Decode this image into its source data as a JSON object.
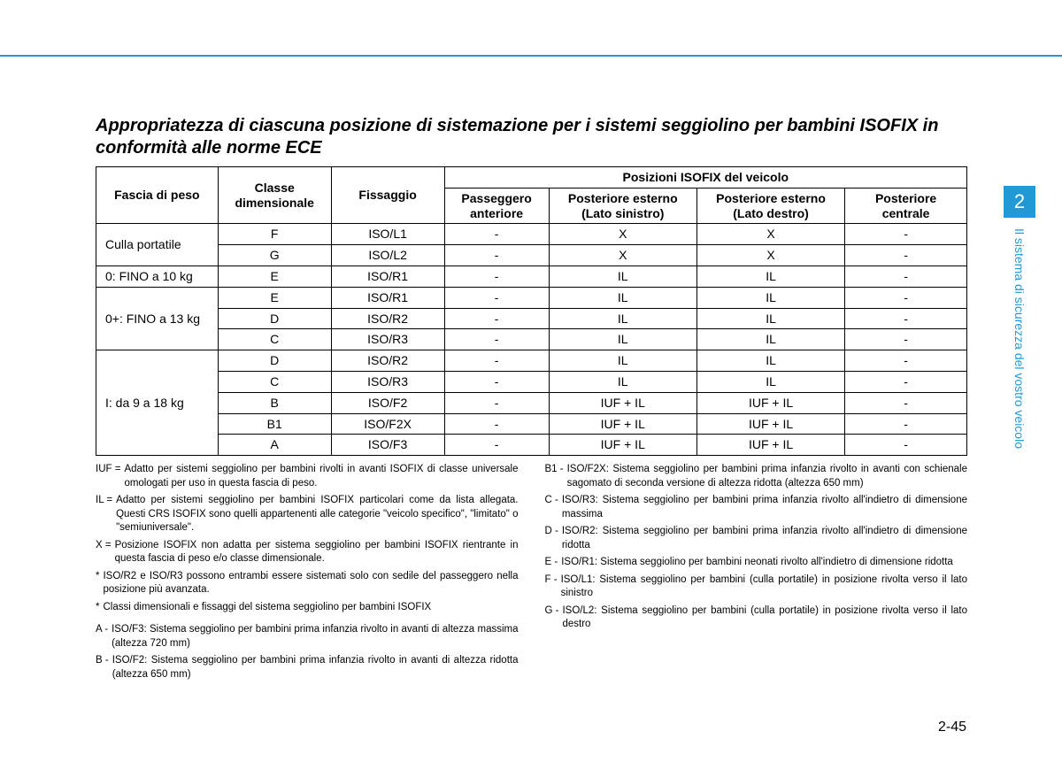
{
  "colors": {
    "accent": "#2199d5",
    "text": "#000000",
    "bg": "#ffffff",
    "border": "#000000"
  },
  "typography": {
    "base_font": "Arial",
    "title_size_pt": 15,
    "table_size_pt": 10.5,
    "footnote_size_pt": 8.5
  },
  "side": {
    "chapter": "2",
    "label": "Il sistema di sicurezza del vostro veicolo"
  },
  "page_number": "2-45",
  "title": "Appropriatezza di ciascuna posizione di sistemazione per i sistemi seggiolino per bambini ISOFIX in conformità alle norme ECE",
  "table": {
    "type": "table",
    "border_color": "#000000",
    "col_widths_pct": [
      14,
      13,
      13,
      12,
      17,
      17,
      14
    ],
    "headers": {
      "weight": "Fascia di peso",
      "class": "Classe dimensionale",
      "fixture": "Fissaggio",
      "group": "Posizioni ISOFIX del veicolo",
      "pos1": "Passeggero anteriore",
      "pos2": "Posteriore esterno (Lato sinistro)",
      "pos3": "Posteriore esterno (Lato destro)",
      "pos4": "Posteriore centrale"
    },
    "rows": [
      {
        "weight": "Culla portatile",
        "span": 2,
        "cls": "F",
        "fix": "ISO/L1",
        "p1": "-",
        "p2": "X",
        "p3": "X",
        "p4": "-"
      },
      {
        "cls": "G",
        "fix": "ISO/L2",
        "p1": "-",
        "p2": "X",
        "p3": "X",
        "p4": "-"
      },
      {
        "weight": "0: FINO a 10 kg",
        "span": 1,
        "cls": "E",
        "fix": "ISO/R1",
        "p1": "-",
        "p2": "IL",
        "p3": "IL",
        "p4": "-"
      },
      {
        "weight": "0+: FINO a 13 kg",
        "span": 3,
        "cls": "E",
        "fix": "ISO/R1",
        "p1": "-",
        "p2": "IL",
        "p3": "IL",
        "p4": "-"
      },
      {
        "cls": "D",
        "fix": "ISO/R2",
        "p1": "-",
        "p2": "IL",
        "p3": "IL",
        "p4": "-"
      },
      {
        "cls": "C",
        "fix": "ISO/R3",
        "p1": "-",
        "p2": "IL",
        "p3": "IL",
        "p4": "-"
      },
      {
        "weight": "I: da 9 a 18 kg",
        "span": 5,
        "cls": "D",
        "fix": "ISO/R2",
        "p1": "-",
        "p2": "IL",
        "p3": "IL",
        "p4": "-"
      },
      {
        "cls": "C",
        "fix": "ISO/R3",
        "p1": "-",
        "p2": "IL",
        "p3": "IL",
        "p4": "-"
      },
      {
        "cls": "B",
        "fix": "ISO/F2",
        "p1": "-",
        "p2": "IUF + IL",
        "p3": "IUF + IL",
        "p4": "-"
      },
      {
        "cls": "B1",
        "fix": "ISO/F2X",
        "p1": "-",
        "p2": "IUF + IL",
        "p3": "IUF + IL",
        "p4": "-"
      },
      {
        "cls": "A",
        "fix": "ISO/F3",
        "p1": "-",
        "p2": "IUF + IL",
        "p3": "IUF + IL",
        "p4": "-"
      }
    ]
  },
  "footnotes": {
    "left": [
      {
        "lbl": "IUF =",
        "txt": "Adatto per sistemi seggiolino per bambini rivolti in avanti ISOFIX di classe universale omologati per uso in questa fascia di peso."
      },
      {
        "lbl": "IL =",
        "txt": "Adatto per sistemi seggiolino per bambini ISOFIX particolari come da lista allegata. Questi CRS ISOFIX sono quelli appartenenti alle categorie \"veicolo specifico\", \"limitato\" o \"semiuniversale\"."
      },
      {
        "lbl": "X =",
        "txt": "Posizione ISOFIX non adatta per sistema seggiolino per bambini ISOFIX rientrante in questa fascia di peso e/o classe dimensionale."
      },
      {
        "lbl": "*",
        "txt": "ISO/R2 e ISO/R3 possono entrambi essere sistemati solo con sedile del passeggero nella posizione più avanzata."
      },
      {
        "lbl": "*",
        "txt": "Classi dimensionali e fissaggi del sistema seggiolino per bambini ISOFIX"
      },
      {
        "lbl": "A -",
        "txt": "ISO/F3: Sistema seggiolino per bambini prima infanzia rivolto in avanti di altezza massima (altezza 720 mm)"
      },
      {
        "lbl": "B -",
        "txt": "ISO/F2: Sistema seggiolino per bambini prima infanzia rivolto in avanti di altezza ridotta (altezza 650 mm)"
      }
    ],
    "right": [
      {
        "lbl": "B1 -",
        "txt": "ISO/F2X: Sistema seggiolino per bambini prima infanzia rivolto in avanti con schienale sagomato di seconda versione di altezza ridotta (altezza 650 mm)"
      },
      {
        "lbl": "C -",
        "txt": "ISO/R3: Sistema seggiolino per bambini prima infanzia rivolto all'indietro di dimensione massima"
      },
      {
        "lbl": "D -",
        "txt": "ISO/R2: Sistema seggiolino per bambini prima infanzia rivolto all'indietro di dimensione ridotta"
      },
      {
        "lbl": "E -",
        "txt": "ISO/R1: Sistema seggiolino per bambini neonati rivolto all'indietro di dimensione ridotta"
      },
      {
        "lbl": "F -",
        "txt": "ISO/L1: Sistema seggiolino per bambini (culla portatile) in posizione rivolta verso il lato sinistro"
      },
      {
        "lbl": "G -",
        "txt": "ISO/L2: Sistema seggiolino per bambini (culla portatile) in posizione rivolta verso il lato destro"
      }
    ]
  }
}
